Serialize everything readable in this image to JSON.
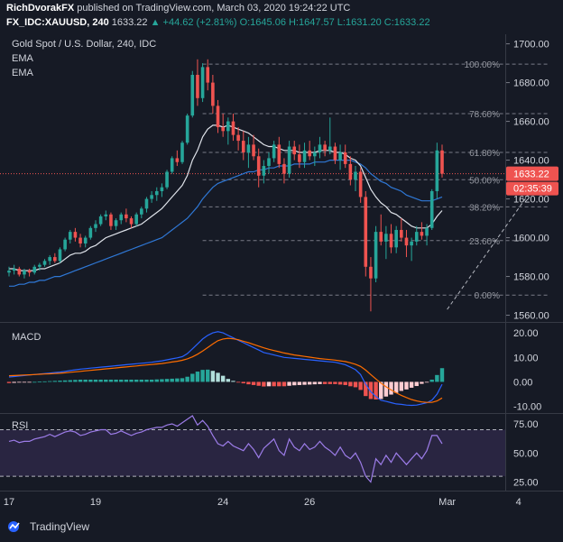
{
  "header": {
    "author": "RichDvorakFX",
    "published": "published on TradingView.com, March 03, 2020 19:24:22 UTC",
    "symbol": "FX_IDC:XAUUSD, 240",
    "last": "1633.22",
    "change": "+44.62 (+2.81%)",
    "ohlc": "O:1645.06 H:1647.57 L:1631.20 C:1633.22"
  },
  "chart_data": [
    {
      "type": "candlestick",
      "title": "Gold Spot / U.S. Dollar, 240, IDC",
      "indicators": [
        "EMA",
        "EMA"
      ],
      "y_ticks": [
        1560,
        1580,
        1600,
        1620,
        1640,
        1660,
        1680,
        1700
      ],
      "y_tick_labels": [
        "1560.00",
        "1580.00",
        "1600.00",
        "1620.00",
        "1640.00",
        "1660.00",
        "1680.00",
        "1700.00"
      ],
      "ylim": [
        1557,
        1704
      ],
      "x_tick_labels": [
        "17",
        "19",
        "24",
        "26",
        "Mar",
        "4"
      ],
      "last_price_label": "1633.22",
      "countdown_label": "02:35:39",
      "fibonacci": [
        {
          "label": "100.00%",
          "price": 1689.5
        },
        {
          "label": "78.60%",
          "price": 1664.0
        },
        {
          "label": "61.80%",
          "price": 1644.0
        },
        {
          "label": "50.00%",
          "price": 1629.9
        },
        {
          "label": "38.20%",
          "price": 1615.9
        },
        {
          "label": "23.60%",
          "price": 1598.5
        },
        {
          "label": "0.00%",
          "price": 1570.4
        }
      ],
      "trendline": {
        "from": {
          "bar": 86,
          "price": 1563
        },
        "to": {
          "bar": 104,
          "price": 1630
        }
      },
      "candles": [
        [
          1582,
          1585,
          1580,
          1583
        ],
        [
          1583,
          1586,
          1581,
          1584
        ],
        [
          1584,
          1585,
          1580,
          1581
        ],
        [
          1581,
          1584,
          1579,
          1583
        ],
        [
          1583,
          1584,
          1580,
          1582
        ],
        [
          1582,
          1586,
          1581,
          1585
        ],
        [
          1585,
          1587,
          1583,
          1586
        ],
        [
          1586,
          1589,
          1585,
          1588
        ],
        [
          1588,
          1591,
          1586,
          1590
        ],
        [
          1590,
          1592,
          1587,
          1588
        ],
        [
          1588,
          1595,
          1587,
          1594
        ],
        [
          1594,
          1600,
          1593,
          1599
        ],
        [
          1599,
          1604,
          1597,
          1603
        ],
        [
          1603,
          1605,
          1598,
          1600
        ],
        [
          1600,
          1602,
          1595,
          1597
        ],
        [
          1597,
          1601,
          1595,
          1600
        ],
        [
          1600,
          1606,
          1599,
          1605
        ],
        [
          1605,
          1609,
          1603,
          1607
        ],
        [
          1607,
          1612,
          1606,
          1611
        ],
        [
          1611,
          1614,
          1609,
          1612
        ],
        [
          1612,
          1613,
          1604,
          1606
        ],
        [
          1606,
          1610,
          1604,
          1609
        ],
        [
          1609,
          1613,
          1607,
          1612
        ],
        [
          1612,
          1615,
          1608,
          1610
        ],
        [
          1610,
          1611,
          1605,
          1607
        ],
        [
          1607,
          1613,
          1606,
          1612
        ],
        [
          1612,
          1616,
          1610,
          1615
        ],
        [
          1615,
          1621,
          1613,
          1620
        ],
        [
          1620,
          1624,
          1618,
          1622
        ],
        [
          1622,
          1626,
          1619,
          1624
        ],
        [
          1624,
          1628,
          1621,
          1626
        ],
        [
          1626,
          1635,
          1625,
          1634
        ],
        [
          1634,
          1642,
          1633,
          1641
        ],
        [
          1641,
          1645,
          1637,
          1639
        ],
        [
          1639,
          1650,
          1638,
          1649
        ],
        [
          1649,
          1664,
          1648,
          1663
        ],
        [
          1663,
          1686,
          1662,
          1684
        ],
        [
          1684,
          1692,
          1668,
          1672
        ],
        [
          1672,
          1690,
          1670,
          1688
        ],
        [
          1688,
          1692,
          1676,
          1680
        ],
        [
          1680,
          1684,
          1664,
          1668
        ],
        [
          1668,
          1671,
          1654,
          1657
        ],
        [
          1657,
          1664,
          1652,
          1655
        ],
        [
          1655,
          1662,
          1648,
          1660
        ],
        [
          1660,
          1664,
          1650,
          1653
        ],
        [
          1653,
          1657,
          1645,
          1650
        ],
        [
          1650,
          1655,
          1640,
          1644
        ],
        [
          1644,
          1652,
          1636,
          1648
        ],
        [
          1648,
          1653,
          1640,
          1642
        ],
        [
          1642,
          1646,
          1626,
          1632
        ],
        [
          1632,
          1640,
          1628,
          1637
        ],
        [
          1637,
          1644,
          1633,
          1641
        ],
        [
          1641,
          1650,
          1639,
          1648
        ],
        [
          1648,
          1652,
          1636,
          1638
        ],
        [
          1638,
          1641,
          1628,
          1633
        ],
        [
          1633,
          1650,
          1631,
          1647
        ],
        [
          1647,
          1650,
          1640,
          1643
        ],
        [
          1643,
          1648,
          1636,
          1639
        ],
        [
          1639,
          1649,
          1636,
          1645
        ],
        [
          1645,
          1650,
          1640,
          1642
        ],
        [
          1642,
          1647,
          1637,
          1644
        ],
        [
          1644,
          1652,
          1641,
          1648
        ],
        [
          1648,
          1650,
          1642,
          1645
        ],
        [
          1645,
          1662,
          1643,
          1647
        ],
        [
          1647,
          1649,
          1638,
          1640
        ],
        [
          1640,
          1648,
          1635,
          1644
        ],
        [
          1644,
          1648,
          1636,
          1638
        ],
        [
          1638,
          1642,
          1627,
          1630
        ],
        [
          1630,
          1637,
          1624,
          1634
        ],
        [
          1634,
          1636,
          1618,
          1621
        ],
        [
          1621,
          1624,
          1580,
          1585
        ],
        [
          1585,
          1590,
          1562,
          1579
        ],
        [
          1579,
          1606,
          1577,
          1603
        ],
        [
          1603,
          1612,
          1596,
          1598
        ],
        [
          1598,
          1606,
          1589,
          1602
        ],
        [
          1602,
          1607,
          1592,
          1595
        ],
        [
          1595,
          1606,
          1592,
          1604
        ],
        [
          1604,
          1610,
          1598,
          1600
        ],
        [
          1600,
          1604,
          1590,
          1596
        ],
        [
          1596,
          1600,
          1588,
          1598
        ],
        [
          1598,
          1606,
          1596,
          1603
        ],
        [
          1603,
          1608,
          1599,
          1601
        ],
        [
          1601,
          1607,
          1596,
          1605
        ],
        [
          1605,
          1625,
          1604,
          1624
        ],
        [
          1624,
          1649,
          1620,
          1645
        ],
        [
          1645,
          1648,
          1631,
          1633
        ]
      ],
      "ema_fast": [
        1584,
        1584,
        1583,
        1583,
        1583,
        1583,
        1584,
        1584,
        1585,
        1586,
        1587,
        1589,
        1591,
        1592,
        1592,
        1593,
        1595,
        1596,
        1598,
        1600,
        1601,
        1602,
        1603,
        1604,
        1605,
        1606,
        1607,
        1609,
        1611,
        1613,
        1615,
        1618,
        1621,
        1624,
        1627,
        1632,
        1640,
        1645,
        1652,
        1656,
        1658,
        1658,
        1657,
        1658,
        1657,
        1656,
        1655,
        1654,
        1652,
        1650,
        1648,
        1647,
        1647,
        1646,
        1645,
        1645,
        1645,
        1644,
        1644,
        1644,
        1644,
        1645,
        1645,
        1645,
        1644,
        1644,
        1643,
        1641,
        1640,
        1637,
        1631,
        1625,
        1621,
        1618,
        1616,
        1613,
        1612,
        1610,
        1608,
        1606,
        1605,
        1605,
        1605,
        1607,
        1611,
        1614
      ],
      "ema_slow": [
        1575,
        1575,
        1576,
        1576,
        1577,
        1577,
        1578,
        1578,
        1579,
        1580,
        1580,
        1581,
        1582,
        1583,
        1584,
        1585,
        1586,
        1587,
        1588,
        1589,
        1590,
        1591,
        1592,
        1593,
        1594,
        1595,
        1596,
        1597,
        1598,
        1599,
        1600,
        1602,
        1604,
        1606,
        1608,
        1610,
        1613,
        1616,
        1620,
        1623,
        1626,
        1628,
        1629,
        1630,
        1631,
        1632,
        1633,
        1634,
        1634,
        1635,
        1635,
        1636,
        1636,
        1637,
        1637,
        1637,
        1638,
        1638,
        1638,
        1638,
        1639,
        1639,
        1639,
        1640,
        1640,
        1640,
        1640,
        1640,
        1639,
        1638,
        1636,
        1633,
        1631,
        1629,
        1628,
        1626,
        1625,
        1624,
        1622,
        1621,
        1620,
        1619,
        1619,
        1619,
        1620,
        1621
      ]
    },
    {
      "type": "line",
      "title": "MACD",
      "y_ticks": [
        -10,
        0,
        10,
        20
      ],
      "y_tick_labels": [
        "-10.00",
        "0.00",
        "10.00",
        "20.00"
      ],
      "ylim": [
        -12,
        23
      ],
      "series": [
        {
          "values": [
            2,
            2.2,
            2.4,
            2.6,
            2.8,
            3,
            3.2,
            3.4,
            3.6,
            3.8,
            4,
            4.3,
            4.6,
            4.9,
            5.2,
            5.4,
            5.6,
            5.8,
            6,
            6.2,
            6.4,
            6.6,
            6.8,
            7,
            7.2,
            7.4,
            7.6,
            7.8,
            8,
            8.3,
            8.6,
            9,
            9.4,
            9.8,
            10.3,
            11.5,
            13.5,
            15.5,
            17.5,
            19,
            20,
            20.5,
            20,
            19,
            18,
            17,
            16,
            15,
            14,
            13,
            12,
            11.5,
            11,
            10.5,
            10,
            9.8,
            9.6,
            9.4,
            9.2,
            9,
            8.8,
            8.6,
            8.4,
            8.2,
            8,
            7.5,
            7,
            6,
            5,
            3,
            -1,
            -4,
            -6,
            -7.5,
            -8,
            -8.5,
            -9,
            -9.2,
            -9.5,
            -9.6,
            -9.5,
            -9,
            -8.5,
            -7.5,
            -5,
            -1
          ]
        },
        {
          "values": [
            2.5,
            2.6,
            2.7,
            2.8,
            2.9,
            3,
            3.1,
            3.2,
            3.3,
            3.4,
            3.5,
            3.7,
            3.9,
            4.1,
            4.3,
            4.5,
            4.7,
            4.9,
            5.1,
            5.3,
            5.5,
            5.7,
            5.9,
            6.1,
            6.3,
            6.5,
            6.7,
            6.9,
            7.1,
            7.3,
            7.5,
            7.8,
            8.1,
            8.4,
            8.8,
            9.4,
            10.2,
            11.3,
            12.6,
            14,
            15.5,
            16.8,
            17.5,
            17.8,
            17.6,
            17.2,
            16.6,
            16,
            15.3,
            14.6,
            13.9,
            13.3,
            12.8,
            12.3,
            11.8,
            11.4,
            11,
            10.7,
            10.4,
            10.1,
            9.8,
            9.5,
            9.3,
            9.1,
            8.9,
            8.6,
            8.3,
            7.8,
            7.2,
            6.3,
            4.8,
            3,
            1.2,
            -0.5,
            -2,
            -3.3,
            -4.5,
            -5.5,
            -6.4,
            -7.2,
            -7.8,
            -8.2,
            -8.4,
            -8.4,
            -7.8,
            -6.6
          ]
        }
      ],
      "histogram": [
        -0.5,
        -0.4,
        -0.3,
        -0.2,
        -0.1,
        0,
        0.1,
        0.2,
        0.3,
        0.4,
        0.5,
        0.6,
        0.7,
        0.8,
        0.9,
        0.9,
        0.9,
        0.9,
        0.9,
        0.9,
        0.9,
        0.9,
        0.9,
        0.9,
        0.9,
        0.9,
        0.9,
        0.9,
        0.9,
        1,
        1.1,
        1.2,
        1.3,
        1.4,
        1.5,
        2.1,
        3.3,
        4.2,
        4.9,
        5,
        4.5,
        3.7,
        2.5,
        1.2,
        0.4,
        -0.2,
        -0.6,
        -1,
        -1.3,
        -1.6,
        -1.9,
        -1.8,
        -1.8,
        -1.8,
        -1.8,
        -1.6,
        -1.4,
        -1.3,
        -1.2,
        -1.1,
        -1,
        -0.9,
        -0.9,
        -0.9,
        -0.9,
        -1.1,
        -1.3,
        -1.8,
        -2.2,
        -3.3,
        -5.8,
        -7,
        -7.2,
        -7,
        -6,
        -5.2,
        -4.5,
        -3.7,
        -3.1,
        -2.4,
        -1.7,
        -0.8,
        -0.1,
        0.9,
        2.8,
        5.6
      ]
    },
    {
      "type": "line",
      "title": "RSI",
      "y_ticks": [
        25,
        50,
        75
      ],
      "y_tick_labels": [
        "25.00",
        "50.00",
        "75.00"
      ],
      "ylim": [
        20,
        82
      ],
      "band": [
        30,
        70
      ],
      "series": [
        {
          "values": [
            60,
            61,
            59,
            60,
            60,
            62,
            63,
            64,
            66,
            64,
            66,
            68,
            69,
            68,
            65,
            66,
            68,
            69,
            70,
            70,
            66,
            67,
            69,
            67,
            65,
            67,
            68,
            70,
            71,
            72,
            72,
            74,
            75,
            73,
            76,
            79,
            82,
            74,
            78,
            73,
            65,
            58,
            56,
            60,
            56,
            54,
            52,
            58,
            53,
            46,
            54,
            58,
            62,
            52,
            48,
            62,
            55,
            52,
            58,
            53,
            55,
            60,
            55,
            52,
            48,
            55,
            48,
            45,
            50,
            42,
            30,
            25,
            45,
            40,
            48,
            42,
            50,
            45,
            40,
            45,
            50,
            45,
            52,
            65,
            65,
            58
          ]
        }
      ]
    }
  ],
  "footer": {
    "brand": "TradingView"
  }
}
